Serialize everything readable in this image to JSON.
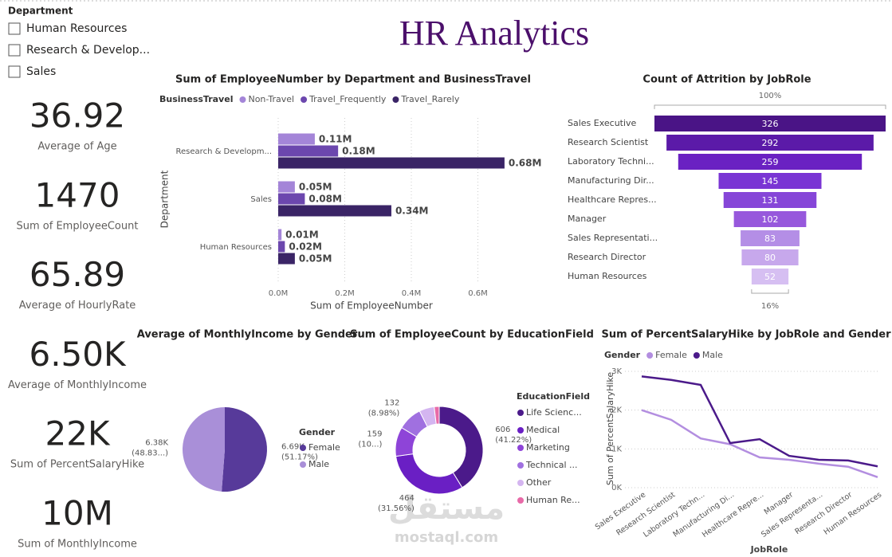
{
  "title": "HR Analytics",
  "slicer": {
    "title": "Department",
    "options": [
      "Human Resources",
      "Research & Develop...",
      "Sales"
    ]
  },
  "cards": [
    {
      "value": "36.92",
      "label": "Average of Age"
    },
    {
      "value": "1470",
      "label": "Sum of EmployeeCount"
    },
    {
      "value": "65.89",
      "label": "Average of HourlyRate"
    },
    {
      "value": "6.50K",
      "label": "Average of MonthlyIncome"
    },
    {
      "value": "22K",
      "label": "Sum of PercentSalaryHike"
    },
    {
      "value": "10M",
      "label": "Sum of MonthlyIncome"
    }
  ],
  "watermark": {
    "arabic": "مستقل",
    "latin": "mostaql.com"
  },
  "chart_data": [
    {
      "type": "hbar",
      "title": "Sum of EmployeeNumber by Department and BusinessTravel",
      "legend_title": "BusinessTravel",
      "categories": [
        "Research & Developm...",
        "Sales",
        "Human Resources"
      ],
      "series": [
        {
          "name": "Non-Travel",
          "color": "#a485d8",
          "values": [
            0.11,
            0.05,
            0.01
          ],
          "value_labels": [
            "0.11M",
            "0.05M",
            "0.01M"
          ]
        },
        {
          "name": "Travel_Frequently",
          "color": "#6c47ae",
          "values": [
            0.18,
            0.08,
            0.02
          ],
          "value_labels": [
            "0.18M",
            "0.08M",
            "0.02M"
          ]
        },
        {
          "name": "Travel_Rarely",
          "color": "#3a2466",
          "values": [
            0.68,
            0.34,
            0.05
          ],
          "value_labels": [
            "0.68M",
            "0.34M",
            "0.05M"
          ]
        }
      ],
      "xlim": [
        0,
        0.8
      ],
      "xticks": [
        {
          "value": 0,
          "label": "0.0M"
        },
        {
          "value": 0.2,
          "label": "0.2M"
        },
        {
          "value": 0.4,
          "label": "0.4M"
        },
        {
          "value": 0.6,
          "label": "0.6M"
        }
      ],
      "xlabel": "Sum of EmployeeNumber",
      "ylabel": "Department",
      "grid": true
    },
    {
      "type": "funnel",
      "title": "Count of Attrition by JobRole",
      "categories": [
        "Sales Executive",
        "Research Scientist",
        "Laboratory Techni...",
        "Manufacturing Dir...",
        "Healthcare Repres...",
        "Manager",
        "Sales Representati...",
        "Research Director",
        "Human Resources"
      ],
      "values": [
        326,
        292,
        259,
        145,
        131,
        102,
        83,
        80,
        52
      ],
      "colors": [
        "#4a1486",
        "#5b1aa8",
        "#6a21c2",
        "#7a35d4",
        "#8646d8",
        "#9758dc",
        "#b48ee6",
        "#c7a8ec",
        "#d6bff2"
      ],
      "top_label": "100%",
      "bottom_label": "16%"
    },
    {
      "type": "pie",
      "title": "Average of MonthlyIncome by Gender",
      "legend_title": "Gender",
      "categories": [
        "Female",
        "Male"
      ],
      "values": [
        6.69,
        6.38
      ],
      "value_labels": [
        "6.69K",
        "6.38K"
      ],
      "percent_labels": [
        "(51.17%)",
        "(48.83...)"
      ],
      "colors": [
        "#573a9a",
        "#a98fd8"
      ]
    },
    {
      "type": "donut",
      "title": "Sum of EmployeeCount by EducationField",
      "legend_title": "EducationField",
      "categories": [
        "Life Scienc...",
        "Medical",
        "Marketing",
        "Technical ...",
        "Other",
        "Human Re..."
      ],
      "values": [
        606,
        464,
        159,
        132,
        82,
        27
      ],
      "percent_labels": [
        "(41.22%)",
        "(31.56%)",
        "(10...)",
        "(8.98%)",
        null,
        null
      ],
      "colors": [
        "#4b1a8a",
        "#6a1fc4",
        "#8e44d8",
        "#a070e0",
        "#d4b5f0",
        "#e86aa8"
      ]
    },
    {
      "type": "line",
      "title": "Sum of PercentSalaryHike by JobRole and Gender",
      "legend_title": "Gender",
      "categories": [
        "Sales Executive",
        "Research Scientist",
        "Laboratory Techn...",
        "Manufacturing Di...",
        "Healthcare Repre...",
        "Manager",
        "Sales Representa...",
        "Research Director",
        "Human Resources"
      ],
      "series": [
        {
          "name": "Female",
          "color": "#b38ee0",
          "values": [
            2000,
            1750,
            1270,
            1120,
            780,
            720,
            620,
            540,
            270
          ]
        },
        {
          "name": "Male",
          "color": "#4b1a8a",
          "values": [
            2870,
            2780,
            2650,
            1150,
            1250,
            820,
            720,
            700,
            550
          ]
        }
      ],
      "ylim": [
        0,
        3000
      ],
      "yticks": [
        {
          "value": 0,
          "label": "0K"
        },
        {
          "value": 1000,
          "label": "1K"
        },
        {
          "value": 2000,
          "label": "2K"
        },
        {
          "value": 3000,
          "label": "3K"
        }
      ],
      "xlabel": "JobRole",
      "ylabel": "Sum of PercentSalaryHike",
      "grid": true
    }
  ]
}
